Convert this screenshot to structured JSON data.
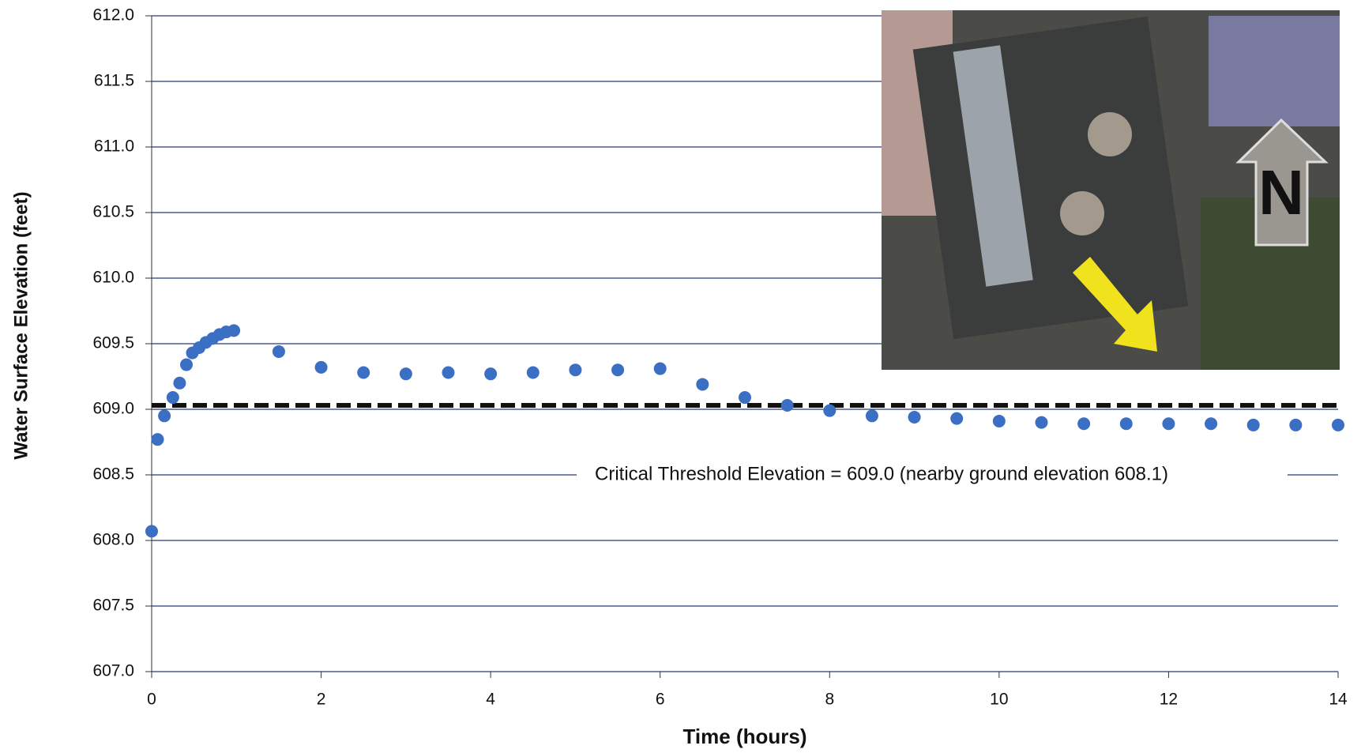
{
  "chart_data": {
    "type": "scatter",
    "x_label": "Time (hours)",
    "y_label": "Water Surface Elevation (feet)",
    "annotation": "Critical Threshold  Elevation  = 609.0 (nearby ground elevation 608.1)",
    "inset_label": "N",
    "threshold_line": 609.03,
    "series": [
      {
        "color": "#3a6fc4",
        "x": [
          0,
          0.07,
          0.15,
          0.25,
          0.33,
          0.41,
          0.48,
          0.56,
          0.64,
          0.72,
          0.8,
          0.88,
          0.97,
          1.5,
          2,
          2.5,
          3,
          3.5,
          4,
          4.5,
          5,
          5.5,
          6,
          6.5,
          7,
          7.5,
          8,
          8.5,
          9,
          9.5,
          10,
          10.5,
          11,
          11.5,
          12,
          12.5,
          13,
          13.5,
          14
        ],
        "values": [
          608.07,
          608.77,
          608.95,
          609.09,
          609.2,
          609.34,
          609.43,
          609.47,
          609.51,
          609.54,
          609.57,
          609.59,
          609.6,
          609.44,
          609.32,
          609.28,
          609.27,
          609.28,
          609.27,
          609.28,
          609.3,
          609.3,
          609.31,
          609.19,
          609.09,
          609.03,
          608.99,
          608.95,
          608.94,
          608.93,
          608.91,
          608.9,
          608.89,
          608.89,
          608.89,
          608.89,
          608.88,
          608.88,
          608.88
        ]
      }
    ],
    "xlim": [
      0,
      14
    ],
    "xticks": [
      0,
      2,
      4,
      6,
      8,
      10,
      12,
      14
    ],
    "ylim": [
      607,
      612
    ],
    "yticks": [
      {
        "value": 607,
        "label": "607.0"
      },
      {
        "value": 607.5,
        "label": "607.5"
      },
      {
        "value": 608,
        "label": "608.0"
      },
      {
        "value": 608.5,
        "label": "608.5"
      },
      {
        "value": 609,
        "label": "609.0"
      },
      {
        "value": 609.5,
        "label": "609.5"
      },
      {
        "value": 610,
        "label": "610.0"
      },
      {
        "value": 610.5,
        "label": "610.5"
      },
      {
        "value": 611,
        "label": "611.0"
      },
      {
        "value": 611.5,
        "label": "611.5"
      },
      {
        "value": 612,
        "label": "612.0"
      }
    ],
    "grid": true
  }
}
